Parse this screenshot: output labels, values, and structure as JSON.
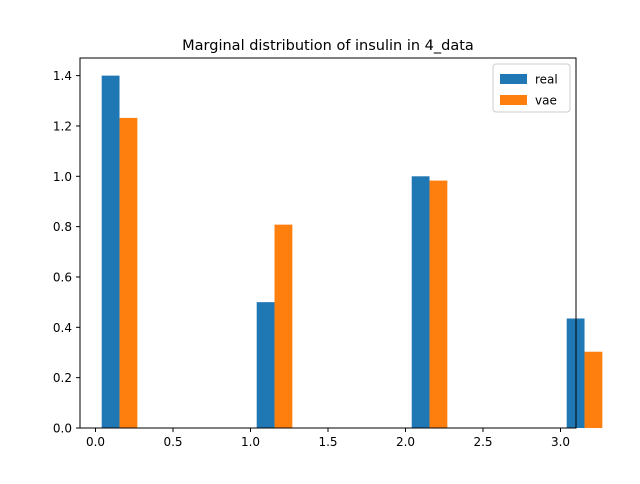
{
  "chart_data": {
    "type": "bar",
    "title": "Marginal distribution of insulin in 4_data",
    "xlabel": "",
    "ylabel": "",
    "xlim": [
      -0.1,
      3.1
    ],
    "ylim": [
      0,
      1.47
    ],
    "bar_width": 0.115,
    "x": [
      0,
      1,
      2,
      3
    ],
    "series": [
      {
        "name": "real",
        "color": "#1f77b4",
        "offset_start": 0.04,
        "values": [
          1.4,
          0.5,
          1.0,
          0.435
        ]
      },
      {
        "name": "vae",
        "color": "#ff7f0e",
        "offset_start": 0.155,
        "values": [
          1.232,
          0.808,
          0.983,
          0.303
        ]
      }
    ],
    "xticks": [
      0.0,
      0.5,
      1.0,
      1.5,
      2.0,
      2.5,
      3.0
    ],
    "xtick_labels": [
      "0.0",
      "0.5",
      "1.0",
      "1.5",
      "2.0",
      "2.5",
      "3.0"
    ],
    "yticks": [
      0.0,
      0.2,
      0.4,
      0.6,
      0.8,
      1.0,
      1.2,
      1.4
    ],
    "ytick_labels": [
      "0.0",
      "0.2",
      "0.4",
      "0.6",
      "0.8",
      "1.0",
      "1.2",
      "1.4"
    ],
    "grid": false,
    "legend_position": "top-right"
  }
}
